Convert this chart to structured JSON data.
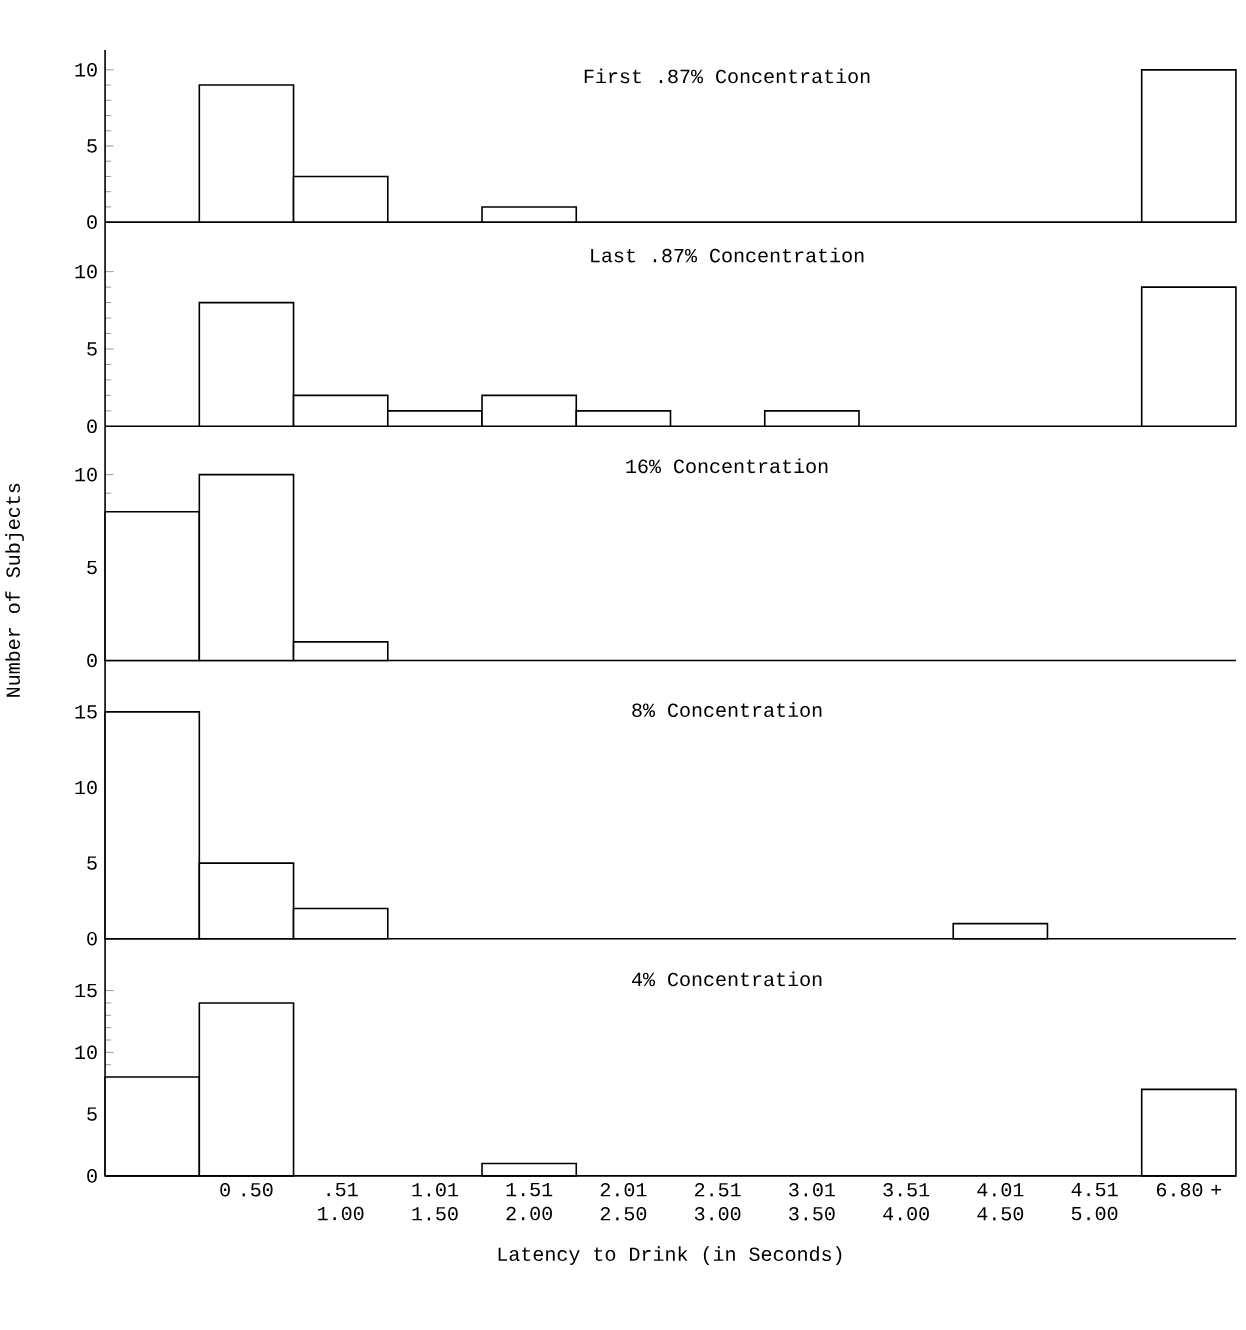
{
  "chart_data": [
    {
      "type": "bar",
      "title": "First .87% Concentration",
      "categories": [
        null,
        null,
        null,
        null,
        null,
        null,
        null,
        null,
        null,
        null,
        null,
        null
      ],
      "values": [
        0,
        9,
        3,
        0,
        1,
        0,
        0,
        0,
        0,
        0,
        0,
        10
      ],
      "color": "#ffffff",
      "ylim": [
        0,
        11.3
      ],
      "yticks": [
        0,
        5,
        10
      ],
      "tick_labels": "y"
    },
    {
      "type": "bar",
      "title": "Last .87% Concentration",
      "categories": [
        null,
        null,
        null,
        null,
        null,
        null,
        null,
        null,
        null,
        null,
        null,
        null
      ],
      "values": [
        0,
        8,
        2,
        1,
        2,
        1,
        0,
        1,
        0,
        0,
        0,
        9
      ],
      "color": "#ffffff",
      "ylim": [
        0,
        13.2
      ],
      "yticks": [
        0,
        5,
        10
      ],
      "tick_labels": "y"
    },
    {
      "type": "bar",
      "title": "16% Concentration",
      "ylabel": "Number of Subjects",
      "categories": [
        null,
        null,
        null,
        null,
        null,
        null,
        null,
        null,
        null,
        null,
        null,
        null
      ],
      "values": [
        8,
        10,
        1,
        0,
        0,
        0,
        0,
        0,
        0,
        0,
        0,
        0
      ],
      "color": "#ffffff",
      "ylim": [
        0,
        12.6
      ],
      "yticks": [
        0,
        5,
        10
      ],
      "tick_labels": "y"
    },
    {
      "type": "bar",
      "title": "8% Concentration",
      "categories": [
        null,
        null,
        null,
        null,
        null,
        null,
        null,
        null,
        null,
        null,
        null,
        null
      ],
      "values": [
        15,
        5,
        2,
        0,
        0,
        0,
        0,
        0,
        0,
        1,
        0,
        0
      ],
      "color": "#ffffff",
      "ylim": [
        0,
        18.4
      ],
      "yticks": [
        0,
        5,
        10,
        15
      ],
      "tick_labels": "y"
    },
    {
      "type": "bar",
      "title": "4% Concentration",
      "xlabel": "Latency to Drink (in Seconds)",
      "categories": [
        null,
        "0 .50",
        ".51 1.00",
        "1.01 1.50",
        "1.51 2.00",
        "2.01 2.50",
        "2.51 3.00",
        "3.01 3.50",
        "3.51 4.00",
        "4.01 4.50",
        "4.51 5.00",
        "6.80 +"
      ],
      "values": [
        8,
        14,
        0,
        0,
        1,
        0,
        0,
        0,
        0,
        0,
        0,
        7
      ],
      "color": "#ffffff",
      "ylim": [
        0,
        19.2
      ],
      "yticks": [
        0,
        5,
        10,
        15
      ]
    }
  ]
}
